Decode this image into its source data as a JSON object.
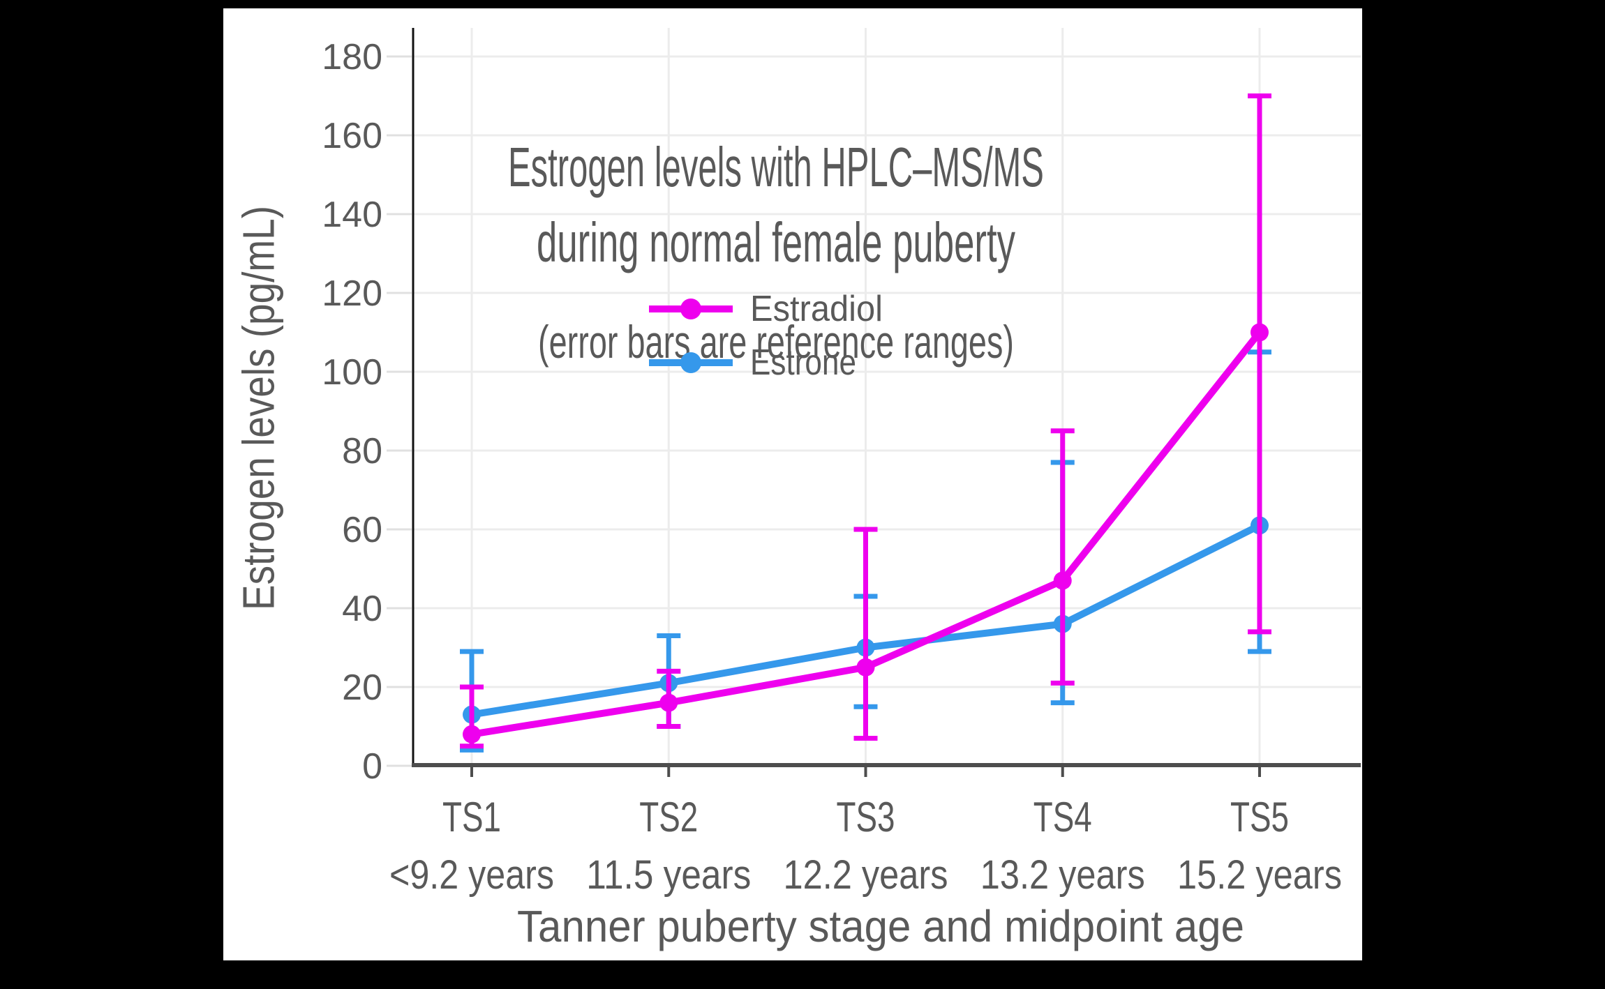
{
  "window": {
    "background": "#000000",
    "card_background": "#ffffff"
  },
  "chart_data": {
    "type": "line",
    "title": [
      "Estrogen levels with HPLC–MS/MS",
      "during normal female puberty"
    ],
    "subtitle": "(error bars are reference ranges)",
    "xlabel": "Tanner puberty stage and midpoint age",
    "ylabel": "Estrogen levels (pg/mL)",
    "categories": [
      "TS1",
      "TS2",
      "TS3",
      "TS4",
      "TS5"
    ],
    "category_ages": [
      "<9.2 years",
      "11.5 years",
      "12.2 years",
      "13.2 years",
      "15.2 years"
    ],
    "y_ticks": [
      0,
      20,
      40,
      60,
      80,
      100,
      120,
      140,
      160,
      180
    ],
    "ylim": [
      0,
      187
    ],
    "grid": true,
    "legend_position": "upper-center-inside",
    "error_bars": "reference ranges",
    "series": [
      {
        "name": "Estradiol",
        "color": "#ee00ee",
        "values": [
          8,
          16,
          25,
          47,
          110
        ],
        "range_low": [
          5,
          10,
          7,
          21,
          34
        ],
        "range_high": [
          20,
          24,
          60,
          85,
          170
        ]
      },
      {
        "name": "Estrone",
        "color": "#3598eb",
        "values": [
          13,
          21,
          30,
          36,
          61
        ],
        "range_low": [
          4,
          10,
          15,
          16,
          29
        ],
        "range_high": [
          29,
          33,
          43,
          77,
          105
        ]
      }
    ],
    "colors": {
      "text": "#595959",
      "grid": "#ececec",
      "x_axis": "#4d4d4d",
      "y_axis": "#111111"
    }
  }
}
